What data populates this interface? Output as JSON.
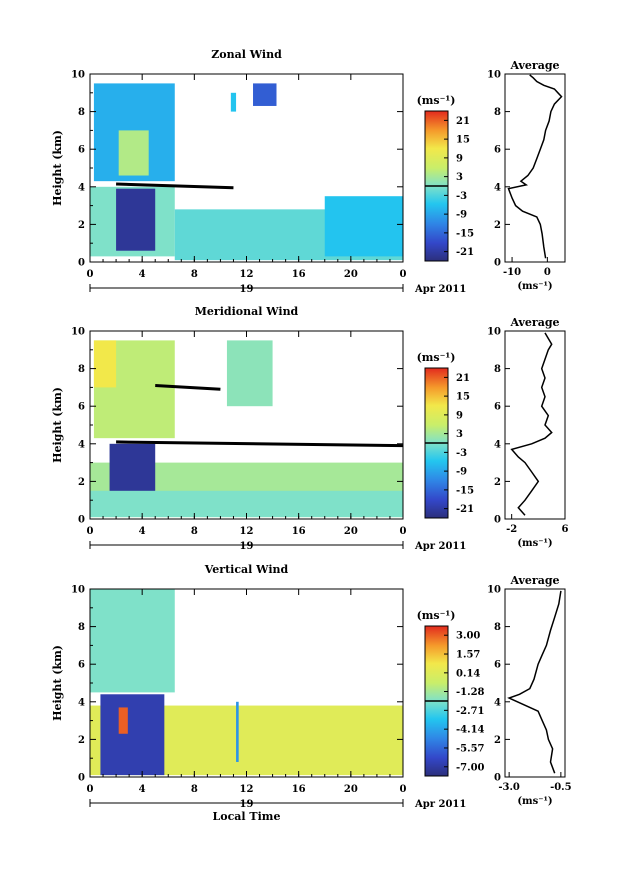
{
  "shared": {
    "xlabel": "Local Time",
    "day_label": "19",
    "date_label": "Apr 2011",
    "ylabel": "Height (km)",
    "unit_label": "(ms⁻¹)",
    "x_ticks": [
      "0",
      "4",
      "8",
      "12",
      "16",
      "20",
      "0"
    ],
    "y_ticks": [
      "0",
      "2",
      "4",
      "6",
      "8",
      "10"
    ],
    "profile_title": "Average"
  },
  "panels": [
    {
      "title": "Zonal Wind",
      "colorbar_ticks": [
        "21",
        "15",
        "9",
        "3",
        "-3",
        "-9",
        "-15",
        "-21"
      ],
      "profile_x_ticks": [
        "-10",
        "0"
      ]
    },
    {
      "title": "Meridional Wind",
      "colorbar_ticks": [
        "21",
        "15",
        "9",
        "3",
        "-3",
        "-9",
        "-15",
        "-21"
      ],
      "profile_x_ticks": [
        "-2",
        "6"
      ]
    },
    {
      "title": "Vertical Wind",
      "colorbar_ticks": [
        "3.00",
        "1.57",
        "0.14",
        "-1.28",
        "-2.71",
        "-4.14",
        "-5.57",
        "-7.00"
      ],
      "profile_x_ticks": [
        "-3.0",
        "-0.5"
      ]
    }
  ],
  "chart_data": [
    {
      "type": "heatmap",
      "title": "Zonal Wind",
      "xlabel": "",
      "ylabel": "Height (km)",
      "xlim": [
        0,
        24
      ],
      "ylim": [
        0,
        10
      ],
      "colorbar": {
        "label": "(ms⁻¹)",
        "range": [
          -24,
          24
        ],
        "ticks": [
          21,
          15,
          9,
          3,
          -3,
          -9,
          -15,
          -21
        ]
      },
      "blocks": [
        {
          "x": [
            0.3,
            6.5
          ],
          "y": [
            4.3,
            9.5
          ],
          "value": -8
        },
        {
          "x": [
            2.2,
            4.5
          ],
          "y": [
            4.6,
            7.0
          ],
          "value": 4
        },
        {
          "x": [
            10.8,
            11.2
          ],
          "y": [
            8.0,
            9.0
          ],
          "value": -6
        },
        {
          "x": [
            12.5,
            14.3
          ],
          "y": [
            8.3,
            9.5
          ],
          "value": -16
        },
        {
          "x": [
            0,
            6.5
          ],
          "y": [
            0.3,
            4.0
          ],
          "value": 0
        },
        {
          "x": [
            2.0,
            5.0
          ],
          "y": [
            0.6,
            3.9
          ],
          "value": -22
        },
        {
          "x": [
            6.5,
            24
          ],
          "y": [
            0.1,
            2.8
          ],
          "value": -2
        },
        {
          "x": [
            18,
            24
          ],
          "y": [
            0.3,
            3.5
          ],
          "value": -6
        }
      ],
      "lines": [
        {
          "x": [
            2,
            11
          ],
          "y": [
            4.15,
            3.95
          ]
        }
      ],
      "profile": {
        "title": "Average",
        "xlim": [
          -12,
          5
        ],
        "xticks": [
          -10,
          0
        ],
        "xlabel": "(ms⁻¹)",
        "x": [
          -0.5,
          -1,
          -1.5,
          -2,
          -3,
          -7,
          -9,
          -10,
          -11,
          -6,
          -7.5,
          -5.5,
          -4,
          -3,
          -2,
          -1,
          -0.5,
          0.5,
          1,
          2,
          4,
          3,
          2,
          -1,
          -3,
          -4,
          -5
        ],
        "y": [
          0.2,
          0.8,
          1.5,
          2.0,
          2.4,
          2.7,
          3.0,
          3.4,
          3.9,
          4.1,
          4.3,
          4.6,
          5.0,
          5.5,
          6.0,
          6.5,
          7.0,
          7.5,
          8.0,
          8.4,
          8.8,
          9.0,
          9.2,
          9.4,
          9.6,
          9.8,
          9.95
        ]
      }
    },
    {
      "type": "heatmap",
      "title": "Meridional Wind",
      "xlabel": "",
      "ylabel": "Height (km)",
      "xlim": [
        0,
        24
      ],
      "ylim": [
        0,
        10
      ],
      "colorbar": {
        "label": "(ms⁻¹)",
        "range": [
          -24,
          24
        ],
        "ticks": [
          21,
          15,
          9,
          3,
          -3,
          -9,
          -15,
          -21
        ]
      },
      "blocks": [
        {
          "x": [
            0.3,
            6.5
          ],
          "y": [
            4.3,
            9.5
          ],
          "value": 5
        },
        {
          "x": [
            0.3,
            2.0
          ],
          "y": [
            7.0,
            9.5
          ],
          "value": 12
        },
        {
          "x": [
            10.5,
            14
          ],
          "y": [
            6.0,
            9.5
          ],
          "value": 1
        },
        {
          "x": [
            0,
            24
          ],
          "y": [
            0.1,
            3.0
          ],
          "value": 3
        },
        {
          "x": [
            1.5,
            5.0
          ],
          "y": [
            1.2,
            4.0
          ],
          "value": -22
        },
        {
          "x": [
            0,
            24
          ],
          "y": [
            0.1,
            1.5
          ],
          "value": 0
        }
      ],
      "lines": [
        {
          "x": [
            2,
            24
          ],
          "y": [
            4.1,
            3.9
          ]
        },
        {
          "x": [
            5,
            10
          ],
          "y": [
            7.1,
            6.9
          ]
        }
      ],
      "profile": {
        "title": "Average",
        "xlim": [
          -3,
          6
        ],
        "xticks": [
          -2,
          6
        ],
        "xlabel": "(ms⁻¹)",
        "x": [
          0,
          -1,
          0,
          1,
          2,
          1,
          0,
          -1,
          -2,
          1,
          3,
          4,
          3,
          3.5,
          2.5,
          3,
          2.5,
          3,
          2.5,
          3,
          3.5,
          4,
          3.5,
          3
        ],
        "y": [
          0.2,
          0.6,
          1.0,
          1.5,
          2.0,
          2.5,
          3.0,
          3.3,
          3.7,
          4.0,
          4.3,
          4.6,
          5.0,
          5.5,
          6.0,
          6.5,
          7.0,
          7.5,
          8.0,
          8.5,
          9.0,
          9.3,
          9.6,
          9.9
        ]
      }
    },
    {
      "type": "heatmap",
      "title": "Vertical Wind",
      "xlabel": "Local Time",
      "ylabel": "Height (km)",
      "xlim": [
        0,
        24
      ],
      "ylim": [
        0,
        10
      ],
      "colorbar": {
        "label": "(ms⁻¹)",
        "range": [
          -7.7,
          3.7
        ],
        "ticks": [
          3.0,
          1.57,
          0.14,
          -1.28,
          -2.71,
          -4.14,
          -5.57,
          -7.0
        ]
      },
      "blocks": [
        {
          "x": [
            0,
            6.5
          ],
          "y": [
            4.5,
            10.0
          ],
          "value": -2.0
        },
        {
          "x": [
            0,
            24
          ],
          "y": [
            0.1,
            3.8
          ],
          "value": 0.2
        },
        {
          "x": [
            0.8,
            5.7
          ],
          "y": [
            0.1,
            4.4
          ],
          "value": -6.8
        },
        {
          "x": [
            2.2,
            2.9
          ],
          "y": [
            2.3,
            3.7
          ],
          "value": 3.0
        },
        {
          "x": [
            11.2,
            11.4
          ],
          "y": [
            0.8,
            4.0
          ],
          "value": -4.5
        }
      ],
      "lines": [],
      "profile": {
        "title": "Average",
        "xlim": [
          -3.2,
          -0.3
        ],
        "xticks": [
          -3.0,
          -0.5
        ],
        "xlabel": "(ms⁻¹)",
        "x": [
          -0.8,
          -1.0,
          -0.9,
          -1.1,
          -1.2,
          -1.4,
          -1.6,
          -2.6,
          -3.0,
          -2.5,
          -2.0,
          -1.8,
          -1.6,
          -1.4,
          -1.2,
          -1.0,
          -0.8,
          -0.6,
          -0.5
        ],
        "y": [
          0.2,
          0.8,
          1.5,
          2.0,
          2.5,
          3.0,
          3.5,
          4.0,
          4.2,
          4.4,
          4.7,
          5.2,
          6.0,
          6.5,
          7.0,
          7.8,
          8.5,
          9.2,
          9.9
        ]
      }
    }
  ]
}
